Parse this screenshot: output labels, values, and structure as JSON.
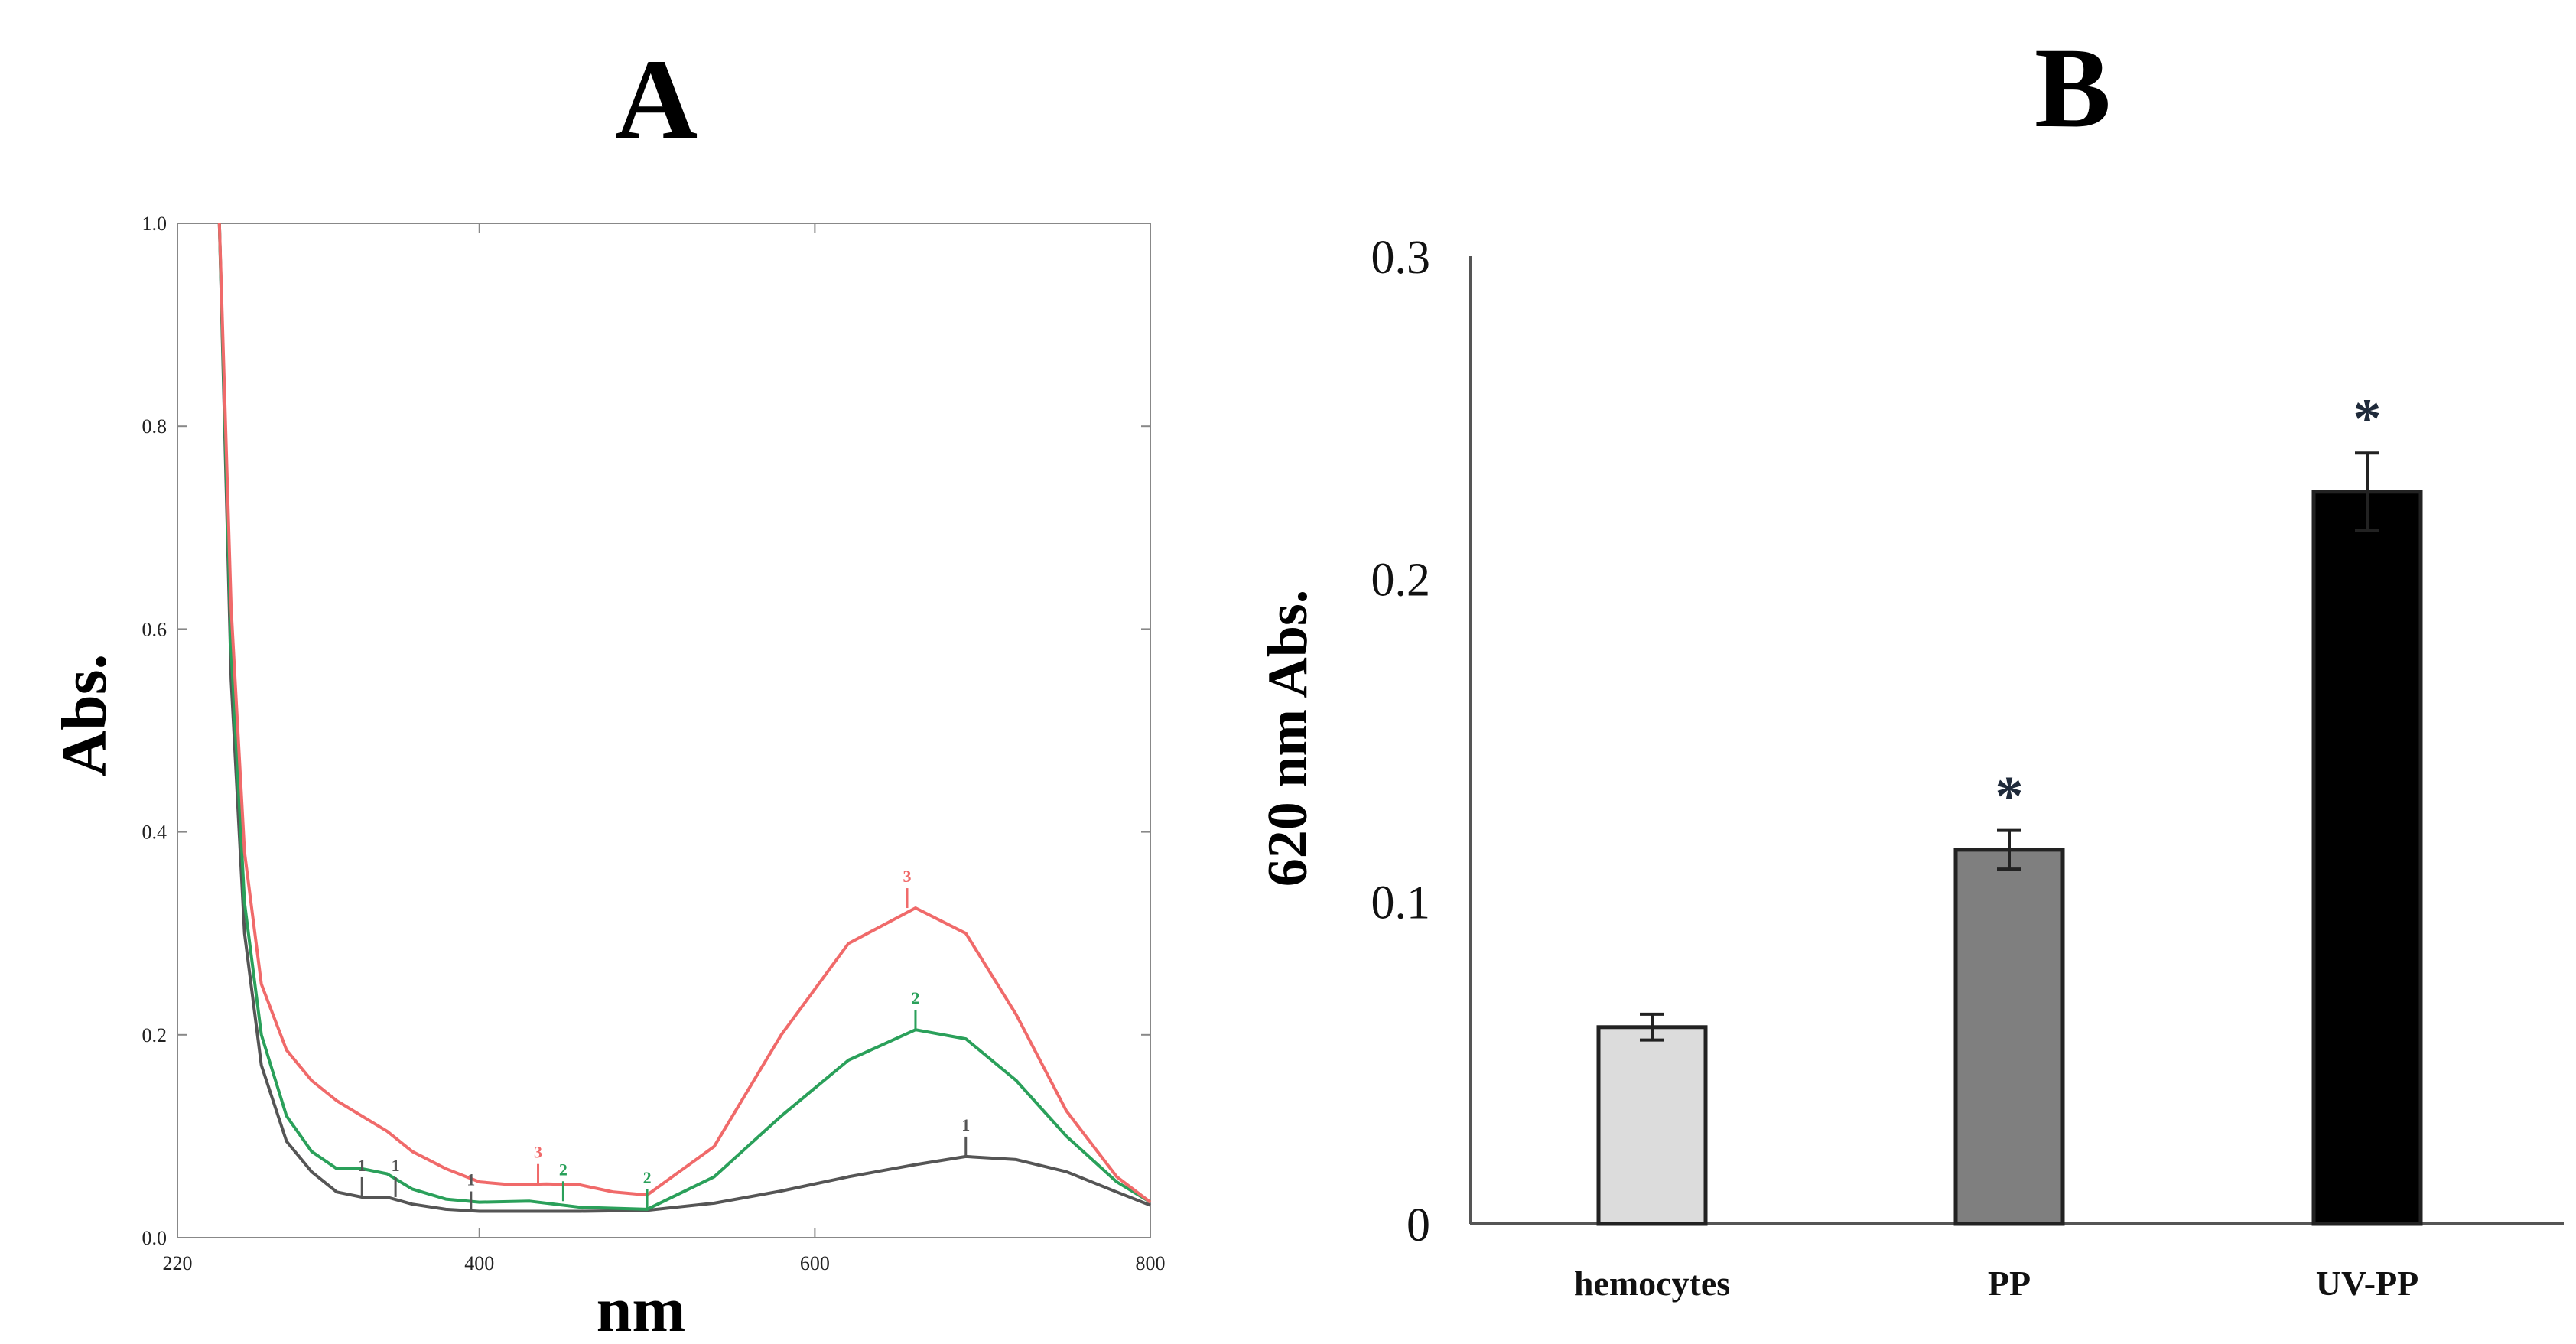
{
  "panels": {
    "a_letter": "A",
    "b_letter": "B"
  },
  "chart_data": [
    {
      "type": "line",
      "panel": "A",
      "title": "",
      "xlabel": "nm",
      "ylabel": "Abs.",
      "xlim": [
        220,
        800
      ],
      "ylim": [
        0,
        1.0
      ],
      "x_ticks": [
        220,
        400,
        600,
        800
      ],
      "x_tick_labels": [
        "220",
        "400",
        "600",
        "800"
      ],
      "y_ticks": [
        0,
        0.2,
        0.4,
        0.6,
        0.8,
        1.0
      ],
      "y_tick_labels": [
        "0.0",
        "0.2",
        "0.4",
        "0.6",
        "0.8",
        "1.0"
      ],
      "grid": false,
      "series": [
        {
          "name": "1",
          "color": "#555555",
          "x": [
            245,
            252,
            260,
            270,
            285,
            300,
            315,
            330,
            345,
            360,
            380,
            400,
            430,
            460,
            500,
            540,
            580,
            620,
            660,
            690,
            720,
            750,
            780,
            800
          ],
          "y": [
            1.0,
            0.55,
            0.3,
            0.17,
            0.095,
            0.065,
            0.045,
            0.04,
            0.04,
            0.033,
            0.028,
            0.026,
            0.026,
            0.026,
            0.027,
            0.034,
            0.046,
            0.06,
            0.072,
            0.08,
            0.077,
            0.065,
            0.045,
            0.032
          ],
          "marker_labels": [
            {
              "x": 330,
              "y": 0.04,
              "text": "1"
            },
            {
              "x": 350,
              "y": 0.04,
              "text": "1"
            },
            {
              "x": 395,
              "y": 0.026,
              "text": "1"
            },
            {
              "x": 690,
              "y": 0.08,
              "text": "1"
            }
          ]
        },
        {
          "name": "2",
          "color": "#2aa05a",
          "x": [
            245,
            252,
            260,
            270,
            285,
            300,
            315,
            330,
            345,
            360,
            380,
            400,
            430,
            460,
            500,
            540,
            580,
            620,
            660,
            690,
            720,
            750,
            780,
            800
          ],
          "y": [
            1.0,
            0.58,
            0.33,
            0.2,
            0.12,
            0.085,
            0.068,
            0.068,
            0.063,
            0.048,
            0.038,
            0.035,
            0.036,
            0.03,
            0.028,
            0.06,
            0.12,
            0.175,
            0.205,
            0.196,
            0.155,
            0.1,
            0.055,
            0.035
          ],
          "marker_labels": [
            {
              "x": 450,
              "y": 0.036,
              "text": "2"
            },
            {
              "x": 500,
              "y": 0.028,
              "text": "2"
            },
            {
              "x": 660,
              "y": 0.205,
              "text": "2"
            }
          ]
        },
        {
          "name": "3",
          "color": "#f06a6a",
          "x": [
            245,
            252,
            260,
            270,
            285,
            300,
            315,
            330,
            345,
            360,
            380,
            400,
            420,
            440,
            460,
            480,
            500,
            540,
            580,
            620,
            660,
            690,
            720,
            750,
            780,
            800
          ],
          "y": [
            1.0,
            0.62,
            0.38,
            0.25,
            0.185,
            0.155,
            0.135,
            0.12,
            0.105,
            0.085,
            0.068,
            0.055,
            0.052,
            0.053,
            0.052,
            0.045,
            0.042,
            0.09,
            0.2,
            0.29,
            0.325,
            0.3,
            0.22,
            0.125,
            0.06,
            0.035
          ],
          "marker_labels": [
            {
              "x": 435,
              "y": 0.053,
              "text": "3"
            },
            {
              "x": 655,
              "y": 0.325,
              "text": "3"
            }
          ]
        }
      ]
    },
    {
      "type": "bar",
      "panel": "B",
      "title": "",
      "xlabel": "",
      "ylabel": "620 nm Abs.",
      "ylim": [
        0,
        0.3
      ],
      "y_ticks": [
        0,
        0.1,
        0.2,
        0.3
      ],
      "y_tick_labels": [
        "0",
        "0.1",
        "0.2",
        "0.3"
      ],
      "categories": [
        "hemocytes",
        "PP",
        "UV-PP"
      ],
      "values": [
        0.061,
        0.116,
        0.227
      ],
      "errors": [
        0.004,
        0.006,
        0.012
      ],
      "colors": [
        "#dcdcdc",
        "#7f7f7f",
        "#000000"
      ],
      "significance": [
        "",
        "*",
        "*"
      ],
      "grid": false
    }
  ]
}
